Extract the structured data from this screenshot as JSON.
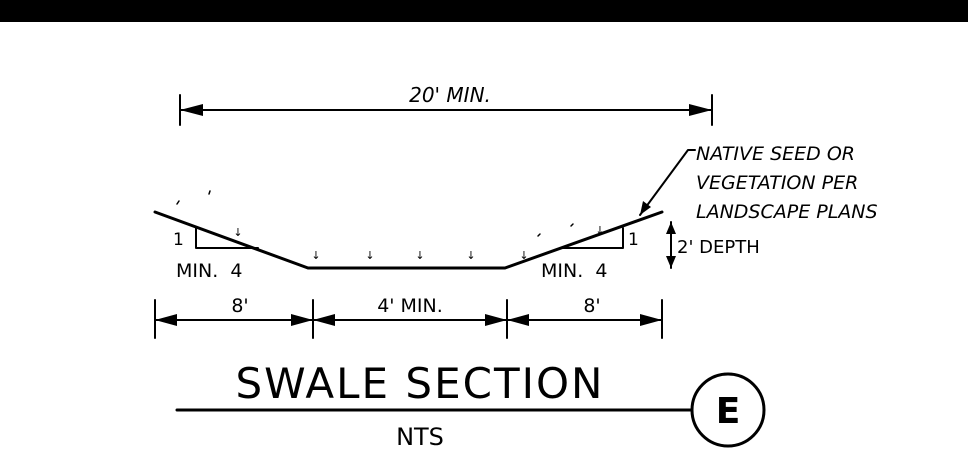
{
  "drawing": {
    "overall_width": "20' MIN.",
    "callout": {
      "line1": "NATIVE SEED OR",
      "line2": "VEGETATION PER",
      "line3": "LANDSCAPE PLANS"
    },
    "depth": "2' DEPTH",
    "slope_left": {
      "rise": "1",
      "run": "MIN.  4"
    },
    "slope_right": {
      "rise": "1",
      "run": "MIN.  4"
    },
    "dimensions": {
      "left_side": "8'",
      "bottom": "4' MIN.",
      "right_side": "8'"
    },
    "title": "SWALE SECTION",
    "scale": "NTS",
    "detail_id": "E",
    "seed_glyph": "↓"
  }
}
